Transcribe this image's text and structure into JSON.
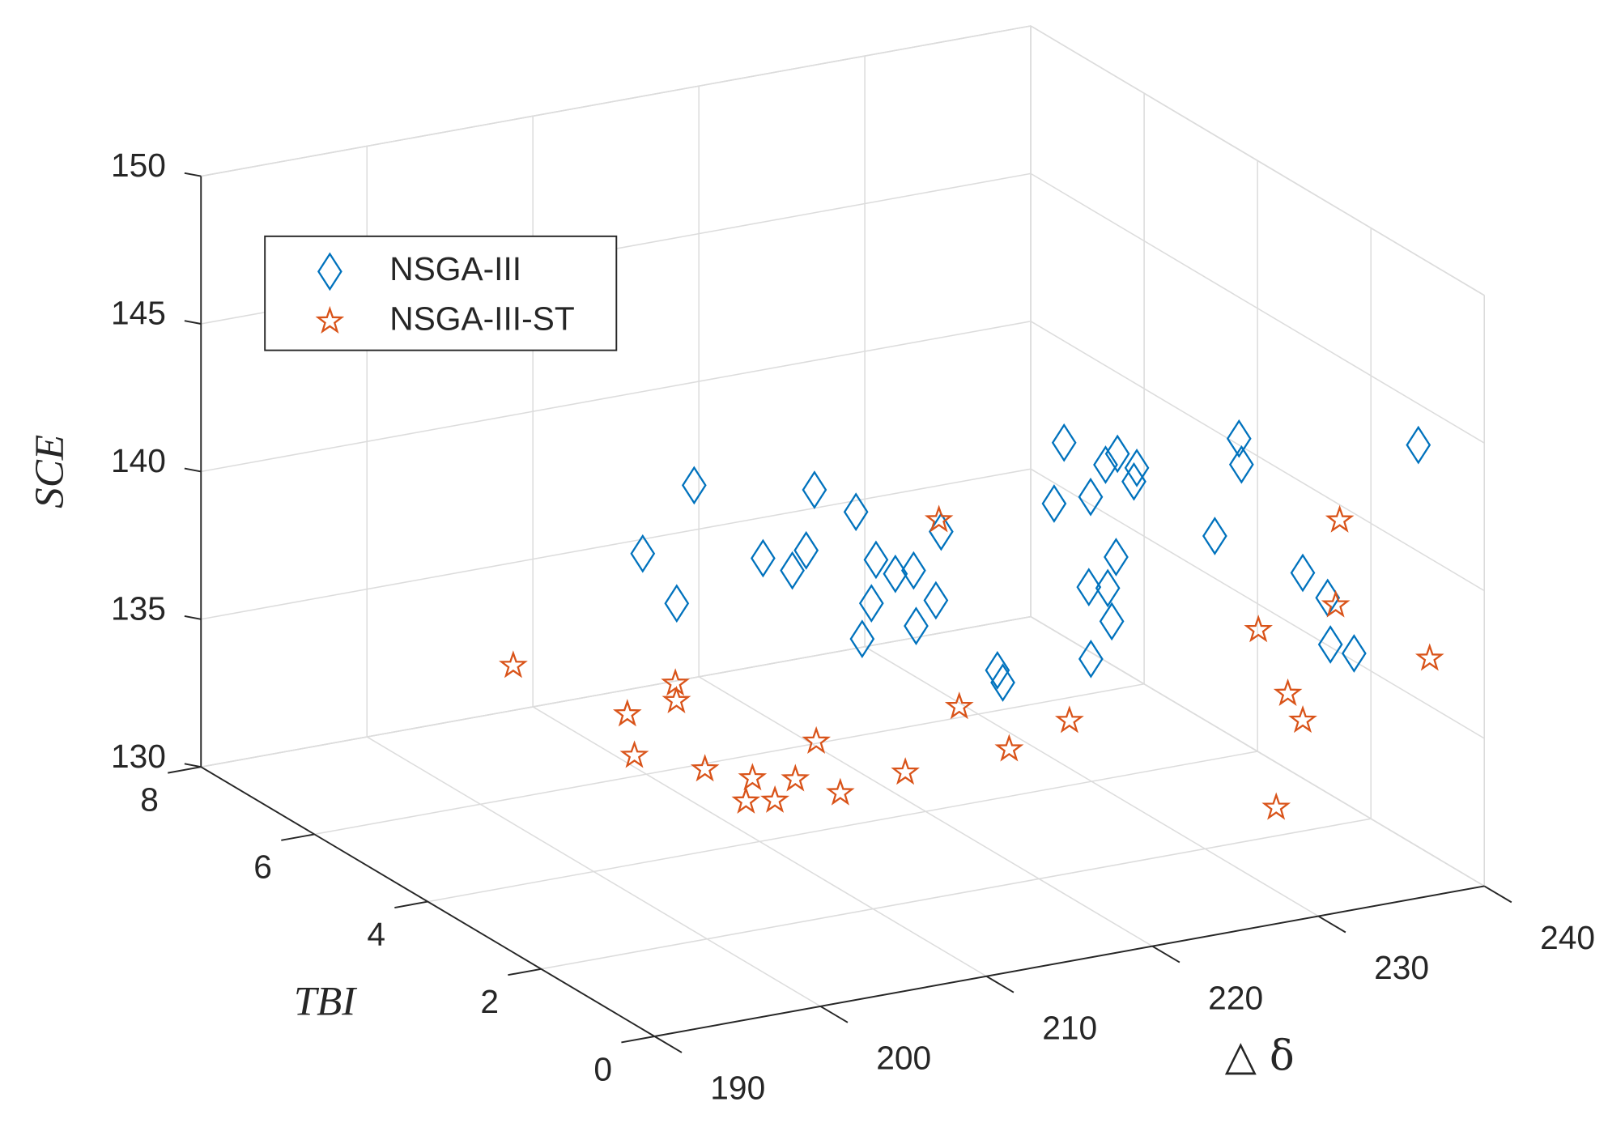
{
  "chart_data": {
    "type": "scatter3d",
    "xlabel": "△ δ",
    "ylabel": "TBI",
    "zlabel": "SCE",
    "xlim": [
      190,
      240
    ],
    "xticks": [
      190,
      200,
      210,
      220,
      230,
      240
    ],
    "ylim": [
      0,
      8
    ],
    "yticks": [
      0,
      2,
      4,
      6,
      8
    ],
    "zlim": [
      130,
      150
    ],
    "zticks": [
      130,
      135,
      140,
      145,
      150
    ],
    "grid": true,
    "legend": "upper left",
    "series": [
      {
        "name": "NSGA-III",
        "color": "#0072bd",
        "marker": "diamond",
        "x": [
          216.3,
          213.2,
          213.2,
          218.4,
          218.8,
          221.0,
          221.5,
          224.0,
          223.5,
          222.2,
          221.3,
          223.3,
          224.4,
          222.5,
          225.4,
          226.4,
          227.4,
          226.7,
          232.1,
          231.5,
          233.7,
          234.6,
          236.0,
          235.8,
          234.6,
          232.5,
          231.2,
          232.0,
          231.9,
          230.3,
          236.4,
          238.2,
          236.3,
          237.6,
          239.1,
          237.9,
          238.3,
          239.1
        ],
        "y": [
          7.0,
          7.0,
          6.4,
          6.4,
          6.0,
          6.4,
          6.4,
          6.4,
          5.9,
          5.6,
          5.5,
          5.5,
          5.5,
          4.9,
          5.4,
          5.6,
          4.9,
          4.6,
          5.1,
          5.1,
          5.1,
          5.1,
          5.3,
          4.9,
          4.6,
          4.3,
          4.4,
          4.3,
          4.2,
          4.1,
          3.7,
          3.8,
          3.2,
          2.5,
          2.5,
          2.1,
          1.8,
          0.9
        ],
        "z": [
          138,
          136,
          135,
          136,
          136,
          136,
          138,
          137,
          136,
          135,
          134,
          136,
          136,
          135,
          135,
          137,
          133,
          133,
          140,
          138,
          138,
          139,
          139,
          139,
          139,
          137,
          136,
          136,
          135,
          134,
          138,
          141,
          141,
          138,
          137,
          136,
          136,
          144
        ]
      },
      {
        "name": "NSGA-III-ST",
        "color": "#d95319",
        "marker": "star",
        "x": [
          205.4,
          209.2,
          213.8,
          212.5,
          208.6,
          210.8,
          212.3,
          210.2,
          211.6,
          214.2,
          215.8,
          215.2,
          219.8,
          225.1,
          224.9,
          226.4,
          231.4,
          238.0,
          236.7,
          237.6,
          231.9,
          238.8,
          238.9,
          239.1
        ],
        "y": [
          7.0,
          6.1,
          6.6,
          6.2,
          5.8,
          5.2,
          4.8,
          4.3,
          4.2,
          4.6,
          4.7,
          4.1,
          4.3,
          4.9,
          5.2,
          4.4,
          4.8,
          3.4,
          2.5,
          2.5,
          1.3,
          2.2,
          2.3,
          0.7
        ],
        "z": [
          133,
          132,
          132,
          132,
          131,
          131,
          131,
          131,
          131,
          131,
          132,
          131,
          131,
          132,
          138,
          131,
          131,
          135,
          134,
          133,
          132,
          140,
          137,
          137
        ]
      }
    ]
  }
}
